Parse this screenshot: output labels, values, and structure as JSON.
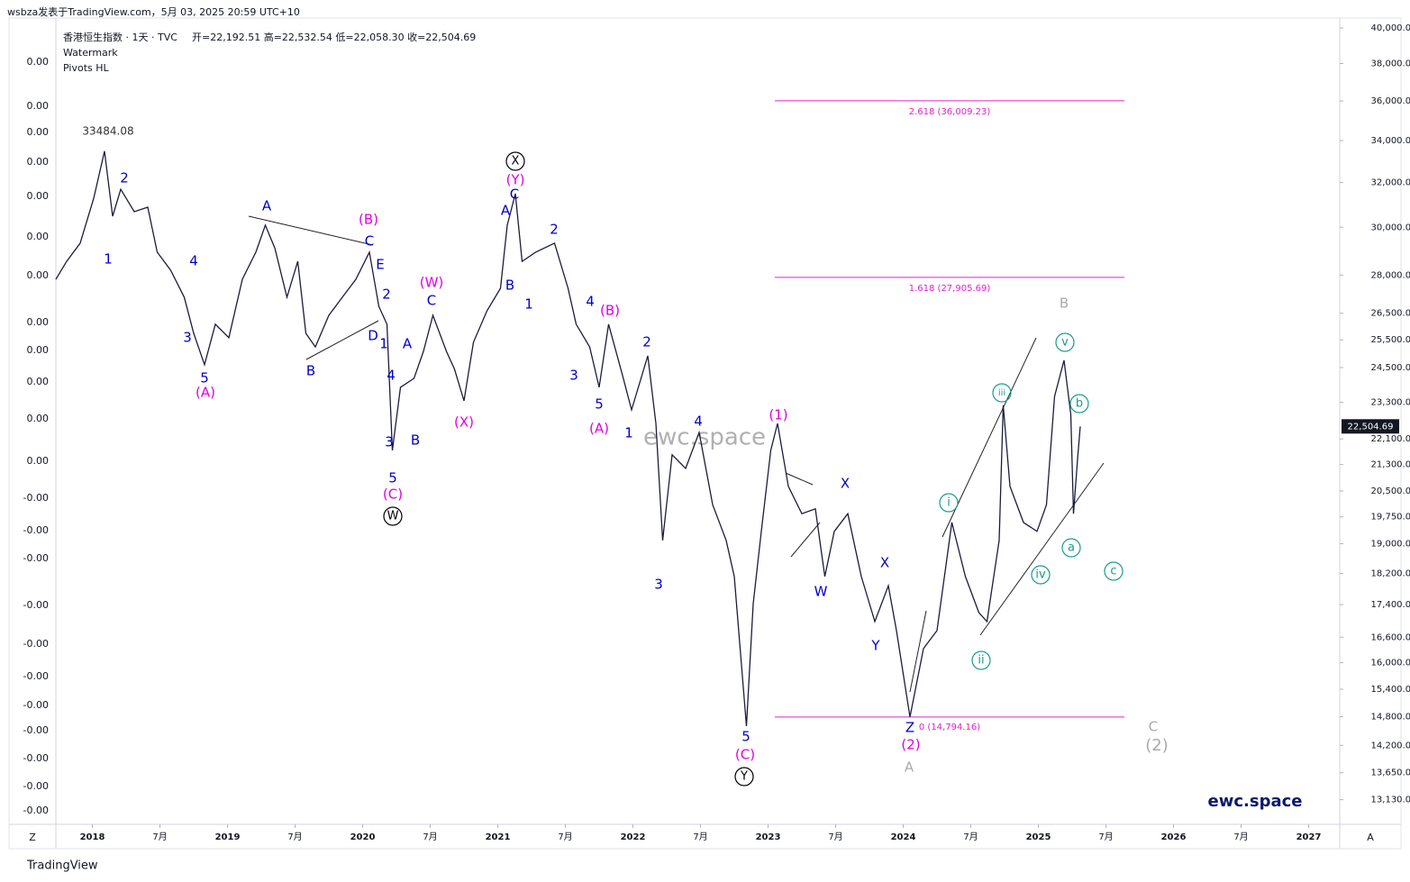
{
  "header": {
    "author_line": "wsbza发表于TradingView.com，5月 03, 2025 20:59 UTC+10",
    "legend_title": "香港恒生指数 · 1天 · TVC",
    "ohlc": "开=22,192.51 高=22,532.54 低=22,058.30 收=22,504.69",
    "indicators": [
      "Watermark",
      "Pivots HL"
    ]
  },
  "footer": "TradingView",
  "corner_left": "Z",
  "corner_right": "A",
  "left_scale_labels": [
    "0.00",
    "0.00",
    "0.00",
    "0.00",
    "0.00",
    "0.00",
    "0.00",
    "0.00",
    "0.00",
    "0.00",
    "0.00",
    "0.00",
    "-0.00",
    "-0.00",
    "-0.00",
    "-0.00",
    "-0.00",
    "-0.00",
    "-0.00",
    "-0.00",
    "-0.00",
    "-0.00",
    "-0.00"
  ],
  "chart_data": {
    "type": "line",
    "log_scale": true,
    "color": "#1c1c3c",
    "x": [
      2017.73,
      2017.81,
      2017.91,
      2018.01,
      2018.09,
      2018.15,
      2018.21,
      2018.31,
      2018.41,
      2018.48,
      2018.58,
      2018.68,
      2018.75,
      2018.83,
      2018.91,
      2019.01,
      2019.11,
      2019.21,
      2019.28,
      2019.35,
      2019.44,
      2019.52,
      2019.58,
      2019.65,
      2019.75,
      2019.85,
      2019.95,
      2020.05,
      2020.12,
      2020.18,
      2020.22,
      2020.28,
      2020.38,
      2020.45,
      2020.52,
      2020.62,
      2020.68,
      2020.75,
      2020.82,
      2020.92,
      2021.02,
      2021.07,
      2021.13,
      2021.18,
      2021.28,
      2021.42,
      2021.52,
      2021.58,
      2021.68,
      2021.75,
      2021.82,
      2021.92,
      2021.99,
      2022.11,
      2022.17,
      2022.22,
      2022.29,
      2022.39,
      2022.49,
      2022.59,
      2022.69,
      2022.75,
      2022.84,
      2022.89,
      2022.95,
      2023.02,
      2023.07,
      2023.15,
      2023.25,
      2023.35,
      2023.42,
      2023.49,
      2023.59,
      2023.69,
      2023.79,
      2023.89,
      2023.95,
      2024.05,
      2024.15,
      2024.25,
      2024.36,
      2024.46,
      2024.56,
      2024.62,
      2024.71,
      2024.74,
      2024.79,
      2024.89,
      2024.99,
      2025.06,
      2025.12,
      2025.19,
      2025.24,
      2025.26,
      2025.29,
      2025.31
    ],
    "values": [
      27830,
      28560,
      29320,
      31280,
      33484,
      30480,
      31690,
      30680,
      30880,
      28940,
      28190,
      27120,
      25740,
      24600,
      26080,
      25580,
      27830,
      28940,
      30090,
      29120,
      27120,
      28560,
      25740,
      25240,
      26420,
      27120,
      27830,
      28940,
      26760,
      26080,
      21740,
      23810,
      24120,
      25080,
      26420,
      25080,
      24440,
      23350,
      25410,
      26590,
      27470,
      30090,
      31490,
      28560,
      28940,
      29320,
      27470,
      26080,
      25240,
      23810,
      26080,
      24280,
      23050,
      24920,
      22600,
      19090,
      21600,
      21180,
      22310,
      20100,
      19090,
      18120,
      14600,
      17420,
      19340,
      21740,
      22600,
      20640,
      19840,
      19980,
      18120,
      19340,
      19840,
      18120,
      16980,
      17880,
      16760,
      14794,
      16330,
      16760,
      19590,
      18120,
      17200,
      16980,
      19090,
      23200,
      20640,
      19590,
      19340,
      20100,
      23500,
      24760,
      22900,
      19840,
      21460,
      22504.69
    ],
    "last_price_label": "22,504.69",
    "xlim": [
      2017.73,
      2027.23
    ],
    "xticks": [
      2018,
      {
        "value": 2018.5,
        "label": "7月"
      },
      2019,
      {
        "value": 2019.5,
        "label": "7月"
      },
      2020,
      {
        "value": 2020.5,
        "label": "7月"
      },
      2021,
      {
        "value": 2021.5,
        "label": "7月"
      },
      2022,
      {
        "value": 2022.5,
        "label": "7月"
      },
      2023,
      {
        "value": 2023.5,
        "label": "7月"
      },
      2024,
      {
        "value": 2024.5,
        "label": "7月"
      },
      2025,
      {
        "value": 2025.5,
        "label": "7月"
      },
      2026,
      {
        "value": 2026.5,
        "label": "7月"
      },
      2027
    ],
    "ylim": [
      12670,
      40580
    ],
    "yticks": [
      {
        "value": 40000,
        "label": "40,000.00"
      },
      {
        "value": 38000,
        "label": "38,000.00"
      },
      {
        "value": 36000,
        "label": "36,000.00"
      },
      {
        "value": 34000,
        "label": "34,000.00"
      },
      {
        "value": 32000,
        "label": "32,000.00"
      },
      {
        "value": 30000,
        "label": "30,000.00"
      },
      {
        "value": 28000,
        "label": "28,000.00"
      },
      {
        "value": 26500,
        "label": "26,500.00"
      },
      {
        "value": 25500,
        "label": "25,500.00"
      },
      {
        "value": 24500,
        "label": "24,500.00"
      },
      {
        "value": 23300,
        "label": "23,300.00"
      },
      {
        "value": 22100,
        "label": "22,100.00"
      },
      {
        "value": 21300,
        "label": "21,300.00"
      },
      {
        "value": 20500,
        "label": "20,500.00"
      },
      {
        "value": 19750,
        "label": "19,750.00"
      },
      {
        "value": 19000,
        "label": "19,000.00"
      },
      {
        "value": 18200,
        "label": "18,200.00"
      },
      {
        "value": 17400,
        "label": "17,400.00"
      },
      {
        "value": 16600,
        "label": "16,600.00"
      },
      {
        "value": 16000,
        "label": "16,000.00"
      },
      {
        "value": 15400,
        "label": "15,400.00"
      },
      {
        "value": 14800,
        "label": "14,800.00"
      },
      {
        "value": 14200,
        "label": "14,200.00"
      },
      {
        "value": 13650,
        "label": "13,650.00"
      },
      {
        "value": 13130,
        "label": "13,130.00"
      }
    ],
    "levels": [
      {
        "value": 36009.23,
        "label": "2.618 (36,009.23)"
      },
      {
        "value": 27905.69,
        "label": "1.618 (27,905.69)"
      },
      {
        "value": 14794.16,
        "label": "0 (14,794.16)"
      }
    ],
    "level_color": "#e020d0",
    "watermark": "ewc.space",
    "brand": "ewc.space",
    "annotations": [
      {
        "text": "33484.08",
        "color": "#333333"
      },
      {
        "text": "1",
        "color": "#0000cc"
      },
      {
        "text": "2",
        "color": "#0000cc"
      },
      {
        "text": "4",
        "color": "#0000cc"
      },
      {
        "text": "3",
        "color": "#0000cc"
      },
      {
        "text": "5",
        "color": "#0000cc"
      },
      {
        "text": "(A)",
        "color": "#e000e0"
      },
      {
        "text": "A",
        "color": "#0000cc"
      },
      {
        "text": "B",
        "color": "#0000cc"
      },
      {
        "text": "(B)",
        "color": "#e000e0"
      },
      {
        "text": "C",
        "color": "#0000cc"
      },
      {
        "text": "E",
        "color": "#0000cc"
      },
      {
        "text": "2",
        "color": "#0000cc"
      },
      {
        "text": "D",
        "color": "#0000cc"
      },
      {
        "text": "1",
        "color": "#0000cc"
      },
      {
        "text": "A",
        "color": "#0000cc"
      },
      {
        "text": "4",
        "color": "#0000cc"
      },
      {
        "text": "3",
        "color": "#0000cc"
      },
      {
        "text": "B",
        "color": "#0000cc"
      },
      {
        "text": "5",
        "color": "#0000cc"
      },
      {
        "text": "(C)",
        "color": "#e000e0"
      },
      {
        "text": "W",
        "color": "#000000",
        "circle": true
      },
      {
        "text": "(W)",
        "color": "#e000e0"
      },
      {
        "text": "C",
        "color": "#0000cc"
      },
      {
        "text": "(X)",
        "color": "#e000e0"
      },
      {
        "text": "X",
        "color": "#000000",
        "circle": true
      },
      {
        "text": "(Y)",
        "color": "#e000e0"
      },
      {
        "text": "C",
        "color": "#0000cc"
      },
      {
        "text": "A",
        "color": "#0000cc"
      },
      {
        "text": "B",
        "color": "#0000cc"
      },
      {
        "text": "2",
        "color": "#0000cc"
      },
      {
        "text": "1",
        "color": "#0000cc"
      },
      {
        "text": "4",
        "color": "#0000cc"
      },
      {
        "text": "(B)",
        "color": "#e000e0"
      },
      {
        "text": "3",
        "color": "#0000cc"
      },
      {
        "text": "5",
        "color": "#0000cc"
      },
      {
        "text": "(A)",
        "color": "#e000e0"
      },
      {
        "text": "2",
        "color": "#0000cc"
      },
      {
        "text": "1",
        "color": "#0000cc"
      },
      {
        "text": "4",
        "color": "#0000cc"
      },
      {
        "text": "3",
        "color": "#0000cc"
      },
      {
        "text": "5",
        "color": "#0000cc"
      },
      {
        "text": "(C)",
        "color": "#e000e0"
      },
      {
        "text": "Y",
        "color": "#000000",
        "circle": true
      },
      {
        "text": "(1)",
        "color": "#e000e0"
      },
      {
        "text": "X",
        "color": "#0000cc"
      },
      {
        "text": "W",
        "color": "#0000cc"
      },
      {
        "text": "X",
        "color": "#0000cc"
      },
      {
        "text": "Y",
        "color": "#0000cc"
      },
      {
        "text": "Z",
        "color": "#0000cc"
      },
      {
        "text": "(2)",
        "color": "#e000e0"
      },
      {
        "text": "A",
        "color": "#aaaaaa"
      },
      {
        "text": "i",
        "color": "#1a9a8a",
        "circle": true
      },
      {
        "text": "ii",
        "color": "#1a9a8a",
        "circle": true
      },
      {
        "text": "iii",
        "color": "#1a9a8a",
        "circle": true
      },
      {
        "text": "iv",
        "color": "#1a9a8a",
        "circle": true
      },
      {
        "text": "v",
        "color": "#1a9a8a",
        "circle": true
      },
      {
        "text": "b",
        "color": "#1a9a8a",
        "circle": true
      },
      {
        "text": "a",
        "color": "#1a9a8a",
        "circle": true
      },
      {
        "text": "c",
        "color": "#1a9a8a",
        "circle": true
      },
      {
        "text": "B",
        "color": "#aaaaaa"
      },
      {
        "text": "C",
        "color": "#aaaaaa"
      },
      {
        "text": "(2)",
        "color": "#aaaaaa"
      }
    ]
  }
}
